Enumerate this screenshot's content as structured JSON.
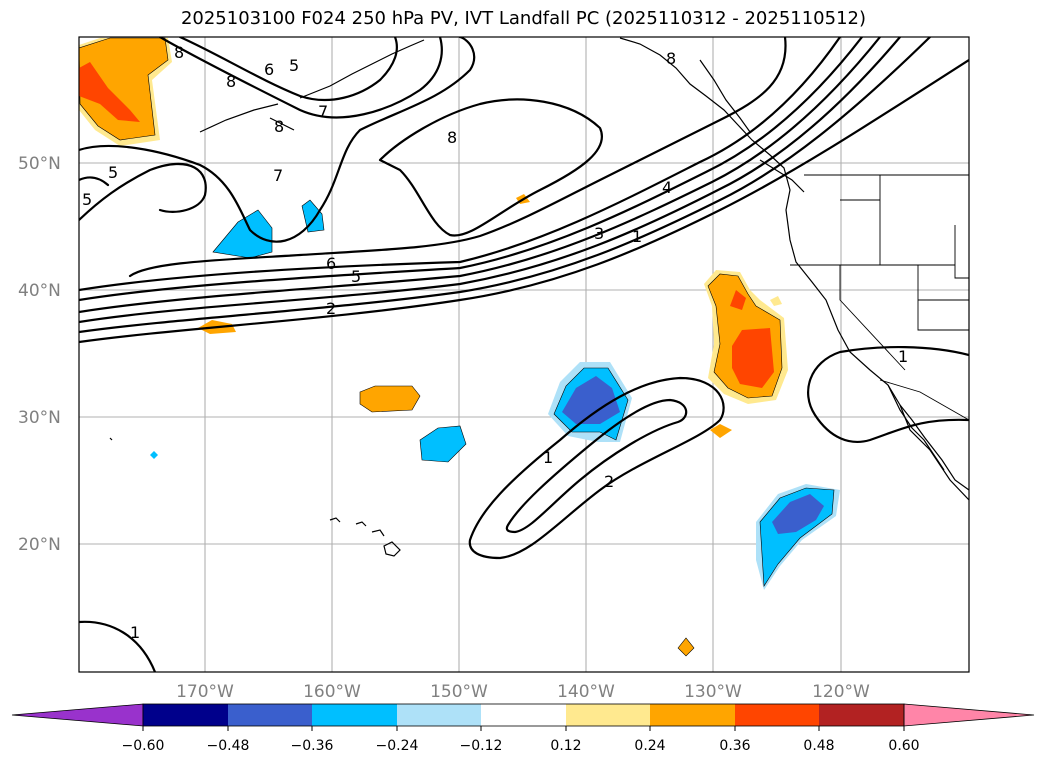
{
  "title": "2025103100 F024 250 hPa PV, IVT Landfall PC (2025110312 - 2025110512)",
  "map": {
    "lon_labels": [
      "170°W",
      "160°W",
      "150°W",
      "140°W",
      "130°W",
      "120°W"
    ],
    "lat_labels": [
      "50°N",
      "40°N",
      "30°N",
      "20°N"
    ],
    "pv_contour_labels": [
      "1",
      "2",
      "3",
      "4",
      "5",
      "6",
      "7",
      "8"
    ]
  },
  "colorbar": {
    "ticks": [
      "−0.60",
      "−0.48",
      "−0.36",
      "−0.24",
      "−0.12",
      "0.12",
      "0.24",
      "0.36",
      "0.48",
      "0.60"
    ],
    "colors": [
      "#9932cc",
      "#00008b",
      "#3a5fcd",
      "#00bfff",
      "#aee1f8",
      "#ffffff",
      "#ffe98f",
      "#ffa500",
      "#ff4500",
      "#b22222",
      "#ff85a8"
    ]
  }
}
